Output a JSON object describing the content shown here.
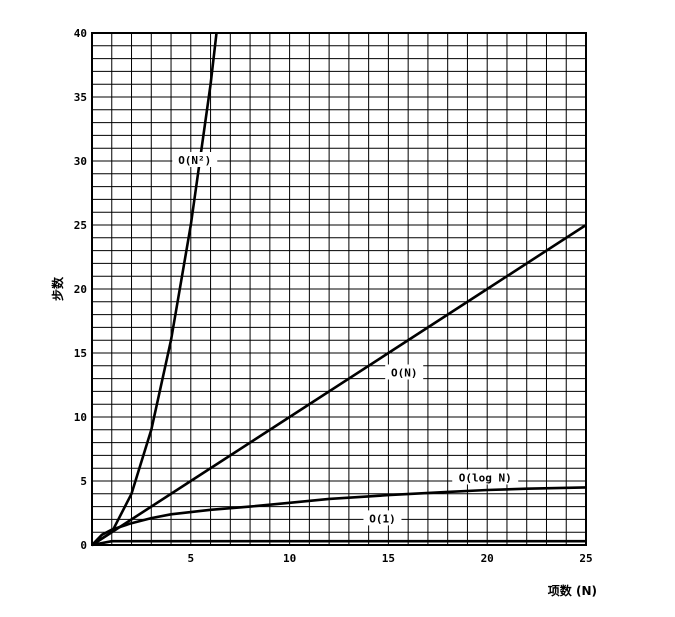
{
  "chart_data": {
    "type": "line",
    "xlabel": "项数 (N)",
    "ylabel": "步数",
    "xlim": [
      0,
      25
    ],
    "ylim": [
      0,
      40
    ],
    "x_ticks": [
      "5",
      "10",
      "15",
      "20",
      "25"
    ],
    "y_ticks": [
      "0",
      "5",
      "10",
      "15",
      "20",
      "25",
      "30",
      "35",
      "40"
    ],
    "grid": true,
    "series": [
      {
        "name": "O(N²)",
        "x": [
          0,
          1,
          2,
          3,
          4,
          5,
          6,
          6.3
        ],
        "y": [
          0,
          1,
          4,
          9,
          16,
          25,
          36,
          40
        ]
      },
      {
        "name": "O(N)",
        "x": [
          0,
          5,
          10,
          15,
          20,
          25
        ],
        "y": [
          0,
          5,
          10,
          15,
          20,
          25
        ]
      },
      {
        "name": "O(log N)",
        "x": [
          0,
          0.5,
          1,
          2,
          3,
          4,
          6,
          8,
          10,
          12,
          15,
          18,
          20,
          22,
          25
        ],
        "y": [
          0,
          0.8,
          1.2,
          1.7,
          2.1,
          2.4,
          2.75,
          3.0,
          3.3,
          3.6,
          3.9,
          4.15,
          4.3,
          4.4,
          4.5
        ]
      },
      {
        "name": "O(1)",
        "x": [
          0,
          1,
          25
        ],
        "y": [
          0,
          0.3,
          0.3
        ]
      }
    ]
  }
}
